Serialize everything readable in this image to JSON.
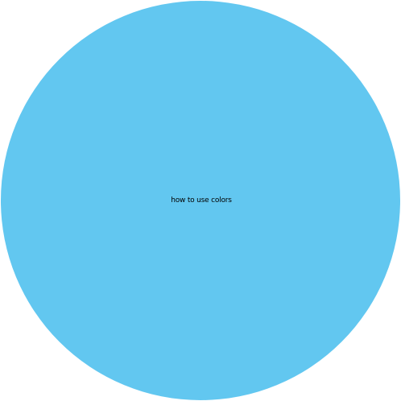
{
  "circle": {
    "label": "how to use colors",
    "fill_color": "#62C7F0"
  }
}
